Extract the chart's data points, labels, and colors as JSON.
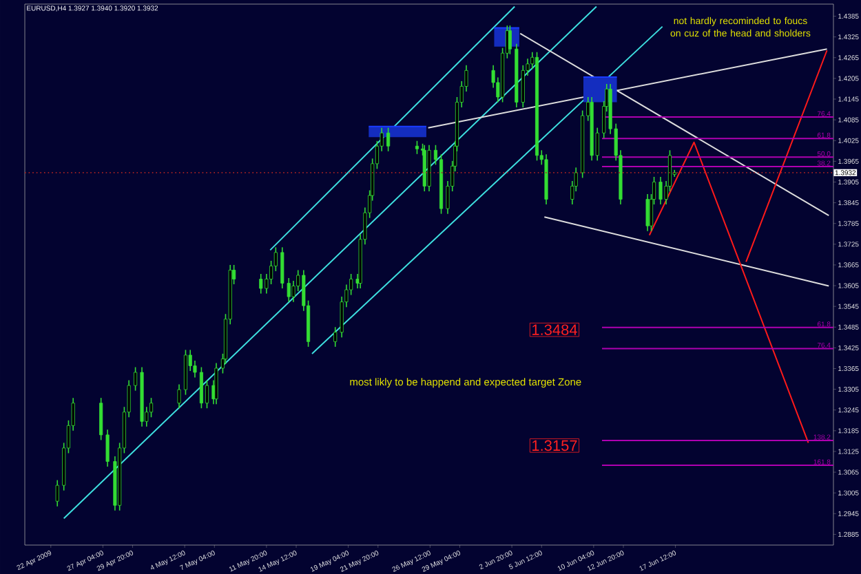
{
  "chart_data": {
    "type": "candlestick",
    "title": "EURUSD,H4  1.3927 1.3940 1.3920 1.3932",
    "color": "#33dd33",
    "x": [
      "2009-04-23T02:00",
      "2009-04-23T16:00",
      "2009-04-24T02:00",
      "2009-04-24T12:00",
      "2009-04-27T00:00",
      "2009-04-27T14:00",
      "2009-04-28T06:00",
      "2009-04-28T16:00",
      "2009-04-29T02:00",
      "2009-04-29T12:00",
      "2009-04-30T02:00",
      "2009-04-30T16:00",
      "2009-05-01T02:00",
      "2009-05-01T12:00",
      "2009-05-04T00:00",
      "2009-05-04T14:00",
      "2009-05-05T00:00",
      "2009-05-05T10:00",
      "2009-05-06T00:00",
      "2009-05-06T12:00",
      "2009-05-07T02:00",
      "2009-05-07T08:00",
      "2009-05-07T22:00",
      "2009-05-08T04:00",
      "2009-05-08T14:00",
      "2009-05-08T22:00",
      "2009-05-11T08:00",
      "2009-05-11T20:00",
      "2009-05-12T06:00",
      "2009-05-12T16:00",
      "2009-05-13T06:00",
      "2009-05-13T20:00",
      "2009-05-14T06:00",
      "2009-05-14T16:00",
      "2009-05-15T04:00",
      "2009-05-15T14:00",
      "2009-05-18T00:00",
      "2009-05-18T14:00",
      "2009-05-19T00:00",
      "2009-05-19T10:00",
      "2009-05-20T00:00",
      "2009-05-20T06:00",
      "2009-05-20T16:00",
      "2009-05-21T02:00",
      "2009-05-21T08:00",
      "2009-05-21T18:00",
      "2009-05-22T04:00",
      "2009-05-22T18:00",
      "2009-05-25T08:00",
      "2009-05-25T20:00",
      "2009-05-26T00:00",
      "2009-05-26T10:00",
      "2009-05-27T00:00",
      "2009-05-27T12:00",
      "2009-05-28T02:00",
      "2009-05-28T12:00",
      "2009-05-28T18:00",
      "2009-05-28T22:00",
      "2009-05-29T08:00",
      "2009-05-29T18:00",
      "2009-06-01T04:00",
      "2009-06-01T14:00",
      "2009-06-02T00:00",
      "2009-06-02T10:00",
      "2009-06-02T16:00",
      "2009-06-03T06:00",
      "2009-06-03T20:00",
      "2009-06-04T06:00",
      "2009-06-04T16:00",
      "2009-06-05T02:00",
      "2009-06-05T12:00",
      "2009-06-05T22:00",
      "2009-06-08T06:00",
      "2009-06-08T14:00",
      "2009-06-09T04:00",
      "2009-06-09T16:00",
      "2009-06-10T00:00",
      "2009-06-10T12:00",
      "2009-06-11T02:00",
      "2009-06-11T08:00",
      "2009-06-11T16:00",
      "2009-06-12T04:00",
      "2009-06-12T14:00",
      "2009-06-15T00:00",
      "2009-06-15T08:00",
      "2009-06-15T14:00",
      "2009-06-16T04:00",
      "2009-06-16T16:00",
      "2009-06-17T00:00",
      "2009-06-17T10:00"
    ],
    "ohlc": [
      [
        1.2981,
        1.3042,
        1.2966,
        1.3027
      ],
      [
        1.3027,
        1.315,
        1.3012,
        1.3135
      ],
      [
        1.3135,
        1.3215,
        1.312,
        1.32
      ],
      [
        1.32,
        1.328,
        1.3185,
        1.3265
      ],
      [
        1.3265,
        1.328,
        1.3158,
        1.3173
      ],
      [
        1.3173,
        1.3188,
        1.3081,
        1.3096
      ],
      [
        1.3096,
        1.3111,
        1.2954,
        1.2969
      ],
      [
        1.2969,
        1.315,
        1.2954,
        1.3135
      ],
      [
        1.3135,
        1.3254,
        1.312,
        1.3239
      ],
      [
        1.3239,
        1.3331,
        1.3224,
        1.3316
      ],
      [
        1.3316,
        1.3369,
        1.3301,
        1.3354
      ],
      [
        1.3354,
        1.3369,
        1.3197,
        1.3212
      ],
      [
        1.3212,
        1.3254,
        1.3197,
        1.3239
      ],
      [
        1.3239,
        1.328,
        1.3224,
        1.3265
      ],
      [
        1.3265,
        1.3319,
        1.325,
        1.3304
      ],
      [
        1.3304,
        1.3419,
        1.3289,
        1.3404
      ],
      [
        1.3404,
        1.3419,
        1.3358,
        1.3373
      ],
      [
        1.3373,
        1.3388,
        1.3339,
        1.3354
      ],
      [
        1.3354,
        1.3369,
        1.325,
        1.3265
      ],
      [
        1.3265,
        1.3331,
        1.325,
        1.3316
      ],
      [
        1.3316,
        1.3331,
        1.3262,
        1.3277
      ],
      [
        1.3277,
        1.3381,
        1.3262,
        1.3366
      ],
      [
        1.3366,
        1.3408,
        1.3351,
        1.3393
      ],
      [
        1.3393,
        1.3523,
        1.3378,
        1.3508
      ],
      [
        1.3508,
        1.3665,
        1.3493,
        1.365
      ],
      [
        1.365,
        1.3665,
        1.3609,
        1.3624
      ],
      [
        1.3624,
        1.3639,
        1.3582,
        1.3597
      ],
      [
        1.3597,
        1.3639,
        1.3582,
        1.3624
      ],
      [
        1.3624,
        1.3677,
        1.3609,
        1.3662
      ],
      [
        1.3662,
        1.3716,
        1.3647,
        1.3701
      ],
      [
        1.3701,
        1.3716,
        1.3597,
        1.3612
      ],
      [
        1.3612,
        1.3627,
        1.3558,
        1.3573
      ],
      [
        1.3573,
        1.3619,
        1.3558,
        1.3604
      ],
      [
        1.3604,
        1.365,
        1.3589,
        1.3635
      ],
      [
        1.3635,
        1.365,
        1.3532,
        1.3547
      ],
      [
        1.3547,
        1.3562,
        1.3428,
        1.3443
      ],
      [
        1.3443,
        1.3485,
        1.3428,
        1.347
      ],
      [
        1.347,
        1.3573,
        1.3455,
        1.3558
      ],
      [
        1.3558,
        1.3608,
        1.3543,
        1.3593
      ],
      [
        1.3593,
        1.3639,
        1.3578,
        1.3624
      ],
      [
        1.3624,
        1.3639,
        1.3597,
        1.3612
      ],
      [
        1.3612,
        1.3754,
        1.3597,
        1.3739
      ],
      [
        1.3739,
        1.3831,
        1.3724,
        1.3816
      ],
      [
        1.3816,
        1.3881,
        1.3801,
        1.3866
      ],
      [
        1.3866,
        1.3973,
        1.3851,
        1.3958
      ],
      [
        1.3958,
        1.4024,
        1.3943,
        1.4009
      ],
      [
        1.4009,
        1.4062,
        1.3994,
        1.4047
      ],
      [
        1.4047,
        1.4062,
        1.3994,
        1.4009
      ],
      [
        1.4009,
        1.4024,
        1.3986,
        1.4001
      ],
      [
        1.4001,
        1.4016,
        1.3982,
        1.3997
      ],
      [
        1.3997,
        1.4012,
        1.3878,
        1.3893
      ],
      [
        1.3893,
        1.4012,
        1.3878,
        1.3997
      ],
      [
        1.3997,
        1.4012,
        1.3955,
        1.397
      ],
      [
        1.397,
        1.3985,
        1.3813,
        1.3828
      ],
      [
        1.3828,
        1.3908,
        1.3813,
        1.3893
      ],
      [
        1.3893,
        1.3966,
        1.3878,
        1.3951
      ],
      [
        1.3951,
        1.4024,
        1.3936,
        1.4009
      ],
      [
        1.4009,
        1.4151,
        1.3994,
        1.4136
      ],
      [
        1.4136,
        1.4197,
        1.4121,
        1.4182
      ],
      [
        1.4182,
        1.4243,
        1.4167,
        1.4228
      ],
      [
        1.4228,
        1.4243,
        1.4178,
        1.4193
      ],
      [
        1.4193,
        1.4208,
        1.4136,
        1.4151
      ],
      [
        1.4151,
        1.4293,
        1.4136,
        1.4278
      ],
      [
        1.4278,
        1.4358,
        1.4263,
        1.4343
      ],
      [
        1.4343,
        1.4358,
        1.4275,
        1.429
      ],
      [
        1.429,
        1.4305,
        1.4121,
        1.4136
      ],
      [
        1.4136,
        1.4243,
        1.4121,
        1.4228
      ],
      [
        1.4228,
        1.4262,
        1.4213,
        1.4247
      ],
      [
        1.4247,
        1.4281,
        1.4232,
        1.4266
      ],
      [
        1.4266,
        1.4281,
        1.3967,
        1.3982
      ],
      [
        1.3982,
        1.3997,
        1.3955,
        1.397
      ],
      [
        1.397,
        1.3985,
        1.384,
        1.3855
      ],
      [
        1.3855,
        1.3908,
        1.384,
        1.3893
      ],
      [
        1.3893,
        1.3947,
        1.3878,
        1.3932
      ],
      [
        1.3932,
        1.4112,
        1.3917,
        1.4097
      ],
      [
        1.4097,
        1.4151,
        1.4082,
        1.4136
      ],
      [
        1.4136,
        1.4151,
        1.3967,
        1.3982
      ],
      [
        1.3982,
        1.4062,
        1.3967,
        1.4047
      ],
      [
        1.4047,
        1.4139,
        1.4032,
        1.4124
      ],
      [
        1.4124,
        1.4189,
        1.4109,
        1.4174
      ],
      [
        1.4174,
        1.4189,
        1.4044,
        1.4059
      ],
      [
        1.4059,
        1.4074,
        1.3967,
        1.3982
      ],
      [
        1.3982,
        1.3997,
        1.384,
        1.3855
      ],
      [
        1.3855,
        1.387,
        1.3763,
        1.3778
      ],
      [
        1.3778,
        1.387,
        1.3763,
        1.3855
      ],
      [
        1.3855,
        1.392,
        1.384,
        1.3905
      ],
      [
        1.3905,
        1.392,
        1.384,
        1.3855
      ],
      [
        1.3855,
        1.3908,
        1.384,
        1.3893
      ],
      [
        1.3893,
        1.3997,
        1.3878,
        1.3982
      ],
      [
        1.3927,
        1.394,
        1.392,
        1.3932
      ]
    ],
    "xlim": [
      "2009-04-20T04:00",
      "2009-07-01T16:00"
    ],
    "ylim": [
      1.2854,
      1.442
    ],
    "xticks": [
      {
        "value": "2009-04-22T12:00",
        "label": "22 Apr 2009"
      },
      {
        "value": "2009-04-27T04:00",
        "label": "27 Apr 04:00"
      },
      {
        "value": "2009-04-29T20:00",
        "label": "29 Apr 20:00"
      },
      {
        "value": "2009-05-04T12:00",
        "label": "4 May 12:00"
      },
      {
        "value": "2009-05-07T04:00",
        "label": "7 May 04:00"
      },
      {
        "value": "2009-05-11T20:00",
        "label": "11 May 20:00"
      },
      {
        "value": "2009-05-14T12:00",
        "label": "14 May 12:00"
      },
      {
        "value": "2009-05-19T04:00",
        "label": "19 May 04:00"
      },
      {
        "value": "2009-05-21T20:00",
        "label": "21 May 20:00"
      },
      {
        "value": "2009-05-26T12:00",
        "label": "26 May 12:00"
      },
      {
        "value": "2009-05-29T04:00",
        "label": "29 May 04:00"
      },
      {
        "value": "2009-06-02T20:00",
        "label": "2 Jun 20:00"
      },
      {
        "value": "2009-06-05T12:00",
        "label": "5 Jun 12:00"
      },
      {
        "value": "2009-06-10T04:00",
        "label": "10 Jun 04:00"
      },
      {
        "value": "2009-06-12T20:00",
        "label": "12 Jun 20:00"
      },
      {
        "value": "2009-06-17T12:00",
        "label": "17 Jun 12:00"
      }
    ],
    "yticks": [
      1.2885,
      1.2945,
      1.3005,
      1.3065,
      1.3125,
      1.3185,
      1.3245,
      1.3305,
      1.3365,
      1.3425,
      1.3485,
      1.3545,
      1.3605,
      1.3665,
      1.3725,
      1.3785,
      1.3845,
      1.3905,
      1.3965,
      1.4025,
      1.4085,
      1.4145,
      1.4205,
      1.4265,
      1.4325,
      1.4385
    ],
    "series": [
      {
        "type": "line",
        "color": "#3ee0e0",
        "x": [
          "2009-05-12T04:00",
          "2009-06-03T02:00"
        ],
        "values": [
          1.3708,
          1.4413
        ]
      },
      {
        "type": "line",
        "color": "#3ee0e0",
        "x": [
          "2009-04-23T16:00",
          "2009-06-10T10:00"
        ],
        "values": [
          1.2931,
          1.4413
        ]
      },
      {
        "type": "line",
        "color": "#3ee0e0",
        "x": [
          "2009-05-15T22:00",
          "2009-06-16T08:00"
        ],
        "values": [
          1.3408,
          1.4355
        ]
      },
      {
        "type": "line",
        "color": "#dddddd",
        "x": [
          "2009-05-26T08:00",
          "2009-07-01T02:00"
        ],
        "values": [
          1.4062,
          1.429
        ]
      },
      {
        "type": "line",
        "color": "#dddddd",
        "x": [
          "2009-06-03T14:00",
          "2009-07-01T06:00"
        ],
        "values": [
          1.4335,
          1.3808
        ]
      },
      {
        "type": "line",
        "color": "#dddddd",
        "x": [
          "2009-06-05T18:00",
          "2009-07-01T06:00"
        ],
        "values": [
          1.3804,
          1.3604
        ]
      },
      {
        "type": "line",
        "color": "#ff1a1a",
        "x": [
          "2009-06-15T04:00",
          "2009-06-19T04:00",
          "2009-06-29T10:00"
        ],
        "values": [
          1.3751,
          1.402,
          1.315
        ]
      },
      {
        "type": "line",
        "color": "#ff1a1a",
        "x": [
          "2009-06-23T20:00",
          "2009-07-01T02:00"
        ],
        "values": [
          1.3674,
          1.4286
        ]
      },
      {
        "type": "line",
        "color": "#1a3cff",
        "x": [
          "2009-05-21T00:00",
          "2009-05-26T04:00"
        ],
        "values": [
          1.4066,
          1.4066
        ],
        "lower": [
          1.4035,
          1.4035
        ],
        "upper": [
          1.4066,
          1.4066
        ]
      },
      {
        "type": "line",
        "color": "#1a3cff",
        "x": [
          "2009-06-01T06:00",
          "2009-06-03T12:00"
        ],
        "values": [
          1.4351,
          1.4351
        ],
        "lower": [
          1.4297,
          1.4297
        ],
        "upper": [
          1.4351,
          1.4351
        ]
      },
      {
        "type": "line",
        "color": "#1a3cff",
        "x": [
          "2009-06-09T06:00",
          "2009-06-12T06:00"
        ],
        "values": [
          1.4209,
          1.4209
        ],
        "lower": [
          1.4136,
          1.4136
        ],
        "upper": [
          1.4209,
          1.4209
        ]
      },
      {
        "type": "line",
        "name": "76.4",
        "color": "#b000b0",
        "x": [
          "2009-06-10T22:00",
          "2009-07-01T16:00"
        ],
        "values": [
          1.4093,
          1.4093
        ]
      },
      {
        "type": "line",
        "name": "61.8",
        "color": "#b000b0",
        "x": [
          "2009-06-10T22:00",
          "2009-07-01T16:00"
        ],
        "values": [
          1.4031,
          1.4031
        ]
      },
      {
        "type": "line",
        "name": "50.0",
        "color": "#b000b0",
        "x": [
          "2009-06-10T22:00",
          "2009-07-01T16:00"
        ],
        "values": [
          1.3977,
          1.3977
        ]
      },
      {
        "type": "line",
        "name": "38.2",
        "color": "#b000b0",
        "x": [
          "2009-06-10T22:00",
          "2009-07-01T16:00"
        ],
        "values": [
          1.395,
          1.395
        ]
      },
      {
        "type": "line",
        "name": "61.8",
        "color": "#b000b0",
        "x": [
          "2009-06-10T22:00",
          "2009-07-01T16:00"
        ],
        "values": [
          1.3484,
          1.3484
        ]
      },
      {
        "type": "line",
        "name": "76.4",
        "color": "#b000b0",
        "x": [
          "2009-06-10T22:00",
          "2009-07-01T16:00"
        ],
        "values": [
          1.3423,
          1.3423
        ]
      },
      {
        "type": "line",
        "name": "138.2",
        "color": "#b000b0",
        "x": [
          "2009-06-10T22:00",
          "2009-07-01T16:00"
        ],
        "values": [
          1.3157,
          1.3157
        ]
      },
      {
        "type": "line",
        "name": "161.8",
        "color": "#b000b0",
        "x": [
          "2009-06-10T22:00",
          "2009-07-01T16:00"
        ],
        "values": [
          1.3085,
          1.3085
        ]
      }
    ],
    "ref_lines": [
      {
        "axis": "y",
        "value": 1.3932,
        "label": "1.3932",
        "color": "#aa2222",
        "line_style": "dotted"
      }
    ],
    "annotations": [
      "not hardly recominded to foucs on cuz of the head and sholders",
      "most likly to be happend and expected target Zone",
      "1.3484",
      "1.3157"
    ]
  }
}
